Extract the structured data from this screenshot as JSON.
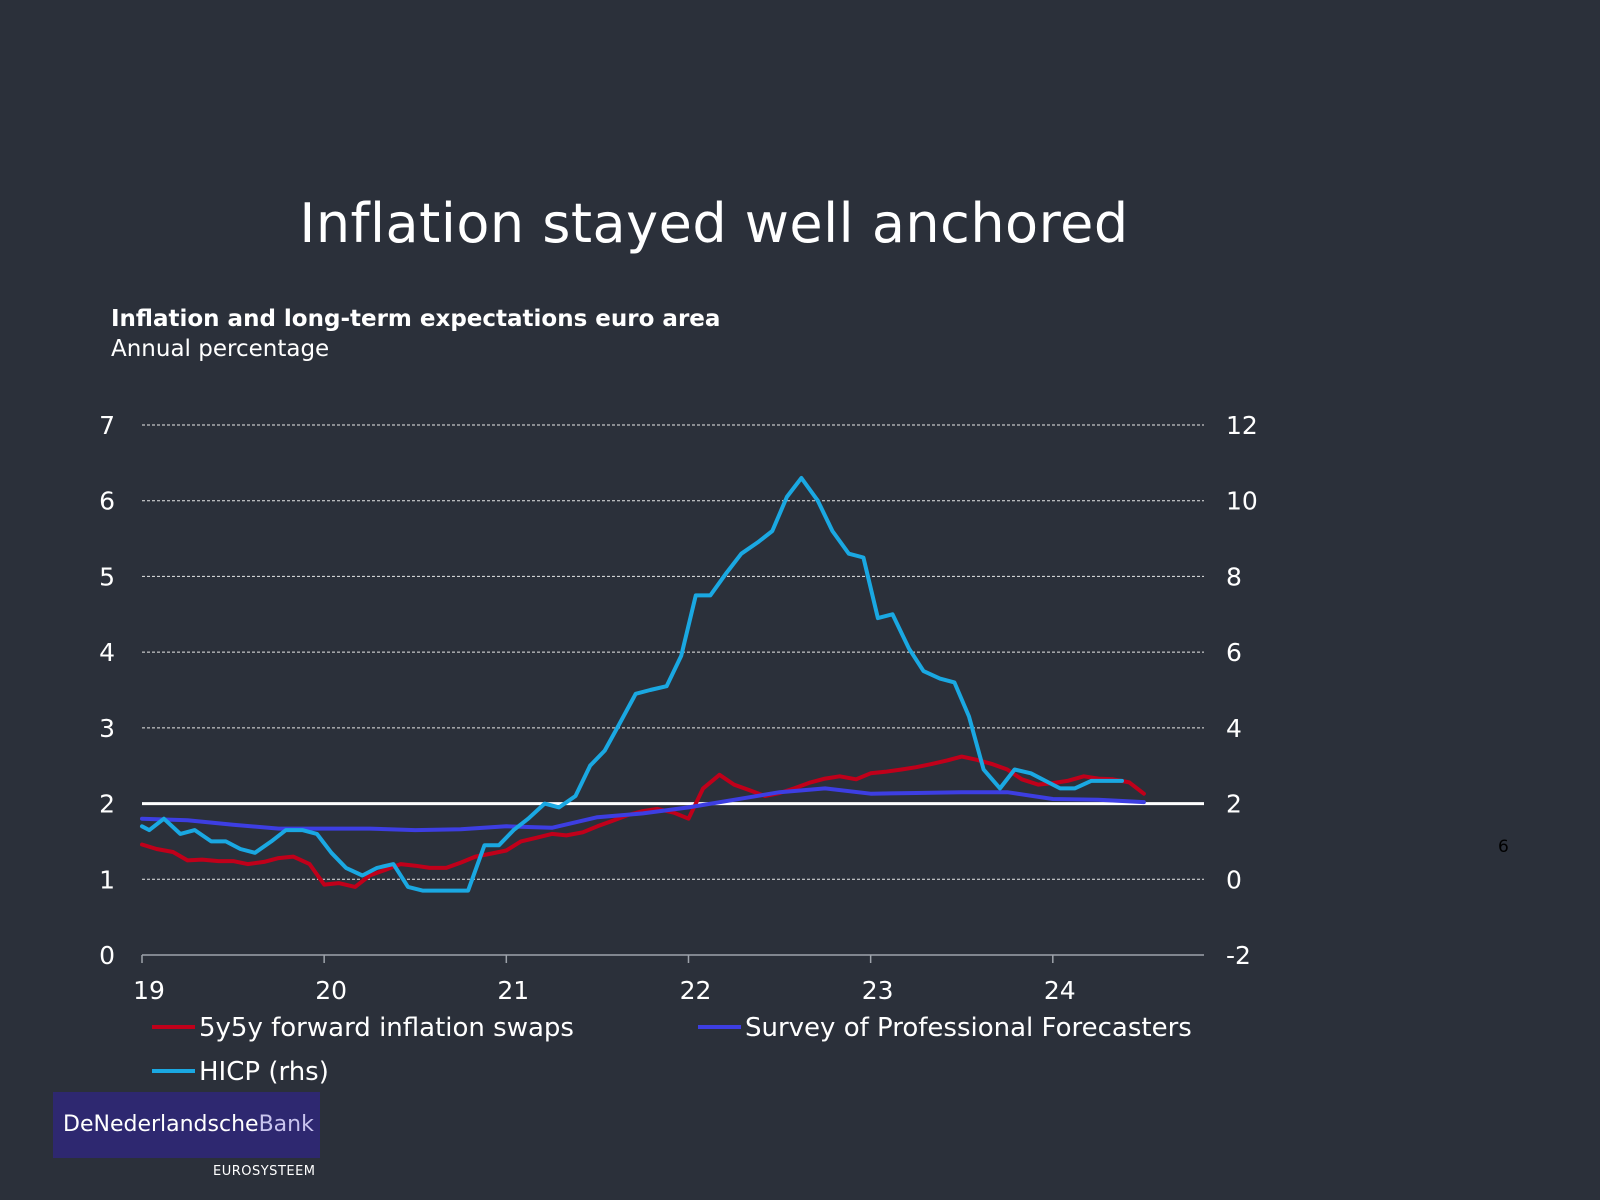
{
  "slide": {
    "title": "Inflation stayed well anchored",
    "page_number": "6"
  },
  "logo": {
    "part1": "De",
    "part2": "Nederlandsche",
    "part3": "Bank",
    "subtitle": "EUROSYSTEEM",
    "color": "#2e2870"
  },
  "chart_data": {
    "type": "line",
    "title": "Inflation and long-term expectations euro area",
    "subtitle": "Annual percentage",
    "x_ticks": [
      "19",
      "20",
      "21",
      "22",
      "23",
      "24"
    ],
    "x_tick_values": [
      2019,
      2020,
      2021,
      2022,
      2023,
      2024
    ],
    "xlim": [
      2019,
      2024.83
    ],
    "ylim_left": [
      0,
      7
    ],
    "yticks_left": [
      0,
      1,
      2,
      3,
      4,
      5,
      6,
      7
    ],
    "ylim_right": [
      -2,
      12
    ],
    "yticks_right": [
      -2,
      0,
      2,
      4,
      6,
      8,
      10,
      12
    ],
    "grid": true,
    "reference_line": {
      "axis": "left",
      "value": 2
    },
    "legend_position": "bottom",
    "series": [
      {
        "name": "5y5y forward inflation swaps",
        "axis": "left",
        "color": "#c0001a",
        "points": [
          [
            2019.0,
            1.46
          ],
          [
            2019.08,
            1.4
          ],
          [
            2019.17,
            1.36
          ],
          [
            2019.25,
            1.25
          ],
          [
            2019.33,
            1.26
          ],
          [
            2019.42,
            1.24
          ],
          [
            2019.5,
            1.24
          ],
          [
            2019.58,
            1.2
          ],
          [
            2019.67,
            1.23
          ],
          [
            2019.75,
            1.28
          ],
          [
            2019.83,
            1.3
          ],
          [
            2019.92,
            1.2
          ],
          [
            2020.0,
            0.93
          ],
          [
            2020.08,
            0.95
          ],
          [
            2020.17,
            0.9
          ],
          [
            2020.25,
            1.05
          ],
          [
            2020.33,
            1.12
          ],
          [
            2020.42,
            1.2
          ],
          [
            2020.5,
            1.18
          ],
          [
            2020.58,
            1.15
          ],
          [
            2020.67,
            1.15
          ],
          [
            2020.75,
            1.22
          ],
          [
            2020.83,
            1.3
          ],
          [
            2020.92,
            1.34
          ],
          [
            2021.0,
            1.38
          ],
          [
            2021.08,
            1.5
          ],
          [
            2021.17,
            1.55
          ],
          [
            2021.25,
            1.6
          ],
          [
            2021.33,
            1.58
          ],
          [
            2021.42,
            1.62
          ],
          [
            2021.5,
            1.7
          ],
          [
            2021.58,
            1.77
          ],
          [
            2021.67,
            1.85
          ],
          [
            2021.75,
            1.9
          ],
          [
            2021.83,
            1.93
          ],
          [
            2021.92,
            1.88
          ],
          [
            2022.0,
            1.8
          ],
          [
            2022.08,
            2.2
          ],
          [
            2022.17,
            2.38
          ],
          [
            2022.25,
            2.25
          ],
          [
            2022.33,
            2.18
          ],
          [
            2022.42,
            2.1
          ],
          [
            2022.5,
            2.14
          ],
          [
            2022.58,
            2.2
          ],
          [
            2022.67,
            2.28
          ],
          [
            2022.75,
            2.33
          ],
          [
            2022.83,
            2.36
          ],
          [
            2022.92,
            2.32
          ],
          [
            2023.0,
            2.4
          ],
          [
            2023.08,
            2.42
          ],
          [
            2023.17,
            2.45
          ],
          [
            2023.25,
            2.48
          ],
          [
            2023.33,
            2.52
          ],
          [
            2023.42,
            2.57
          ],
          [
            2023.5,
            2.62
          ],
          [
            2023.58,
            2.58
          ],
          [
            2023.67,
            2.52
          ],
          [
            2023.75,
            2.45
          ],
          [
            2023.83,
            2.32
          ],
          [
            2023.92,
            2.25
          ],
          [
            2024.0,
            2.27
          ],
          [
            2024.08,
            2.3
          ],
          [
            2024.17,
            2.36
          ],
          [
            2024.25,
            2.33
          ],
          [
            2024.33,
            2.32
          ],
          [
            2024.42,
            2.28
          ],
          [
            2024.5,
            2.13
          ]
        ]
      },
      {
        "name": "Survey of Professional Forecasters",
        "axis": "left",
        "color": "#3d3ee2",
        "points": [
          [
            2019.0,
            1.8
          ],
          [
            2019.25,
            1.78
          ],
          [
            2019.5,
            1.72
          ],
          [
            2019.75,
            1.67
          ],
          [
            2020.0,
            1.67
          ],
          [
            2020.25,
            1.67
          ],
          [
            2020.5,
            1.65
          ],
          [
            2020.75,
            1.66
          ],
          [
            2021.0,
            1.7
          ],
          [
            2021.25,
            1.68
          ],
          [
            2021.5,
            1.82
          ],
          [
            2021.75,
            1.87
          ],
          [
            2022.0,
            1.95
          ],
          [
            2022.25,
            2.05
          ],
          [
            2022.5,
            2.15
          ],
          [
            2022.75,
            2.2
          ],
          [
            2023.0,
            2.13
          ],
          [
            2023.25,
            2.14
          ],
          [
            2023.5,
            2.15
          ],
          [
            2023.75,
            2.15
          ],
          [
            2024.0,
            2.06
          ],
          [
            2024.25,
            2.05
          ],
          [
            2024.5,
            2.02
          ]
        ]
      },
      {
        "name": "HICP (rhs)",
        "axis": "right",
        "color": "#1aa8e2",
        "points": [
          [
            2019.0,
            1.4
          ],
          [
            2019.04,
            1.3
          ],
          [
            2019.12,
            1.6
          ],
          [
            2019.21,
            1.2
          ],
          [
            2019.29,
            1.3
          ],
          [
            2019.38,
            1.0
          ],
          [
            2019.46,
            1.0
          ],
          [
            2019.54,
            0.8
          ],
          [
            2019.62,
            0.7
          ],
          [
            2019.71,
            1.0
          ],
          [
            2019.79,
            1.3
          ],
          [
            2019.88,
            1.3
          ],
          [
            2019.96,
            1.2
          ],
          [
            2020.04,
            0.7
          ],
          [
            2020.12,
            0.3
          ],
          [
            2020.21,
            0.1
          ],
          [
            2020.29,
            0.3
          ],
          [
            2020.38,
            0.4
          ],
          [
            2020.46,
            -0.2
          ],
          [
            2020.54,
            -0.3
          ],
          [
            2020.62,
            -0.3
          ],
          [
            2020.71,
            -0.3
          ],
          [
            2020.79,
            -0.3
          ],
          [
            2020.88,
            0.9
          ],
          [
            2020.96,
            0.9
          ],
          [
            2021.04,
            1.3
          ],
          [
            2021.12,
            1.6
          ],
          [
            2021.21,
            2.0
          ],
          [
            2021.29,
            1.9
          ],
          [
            2021.38,
            2.2
          ],
          [
            2021.46,
            3.0
          ],
          [
            2021.54,
            3.4
          ],
          [
            2021.62,
            4.1
          ],
          [
            2021.71,
            4.9
          ],
          [
            2021.79,
            5.0
          ],
          [
            2021.88,
            5.1
          ],
          [
            2021.96,
            5.9
          ],
          [
            2022.04,
            7.5
          ],
          [
            2022.12,
            7.5
          ],
          [
            2022.21,
            8.1
          ],
          [
            2022.29,
            8.6
          ],
          [
            2022.38,
            8.9
          ],
          [
            2022.46,
            9.2
          ],
          [
            2022.54,
            10.1
          ],
          [
            2022.62,
            10.6
          ],
          [
            2022.71,
            10.0
          ],
          [
            2022.79,
            9.2
          ],
          [
            2022.88,
            8.6
          ],
          [
            2022.96,
            8.5
          ],
          [
            2023.04,
            6.9
          ],
          [
            2023.12,
            7.0
          ],
          [
            2023.21,
            6.1
          ],
          [
            2023.29,
            5.5
          ],
          [
            2023.38,
            5.3
          ],
          [
            2023.46,
            5.2
          ],
          [
            2023.54,
            4.3
          ],
          [
            2023.62,
            2.9
          ],
          [
            2023.71,
            2.4
          ],
          [
            2023.79,
            2.9
          ],
          [
            2023.88,
            2.8
          ],
          [
            2023.96,
            2.6
          ],
          [
            2024.04,
            2.4
          ],
          [
            2024.12,
            2.4
          ],
          [
            2024.21,
            2.6
          ],
          [
            2024.29,
            2.6
          ],
          [
            2024.38,
            2.6
          ]
        ]
      }
    ]
  }
}
